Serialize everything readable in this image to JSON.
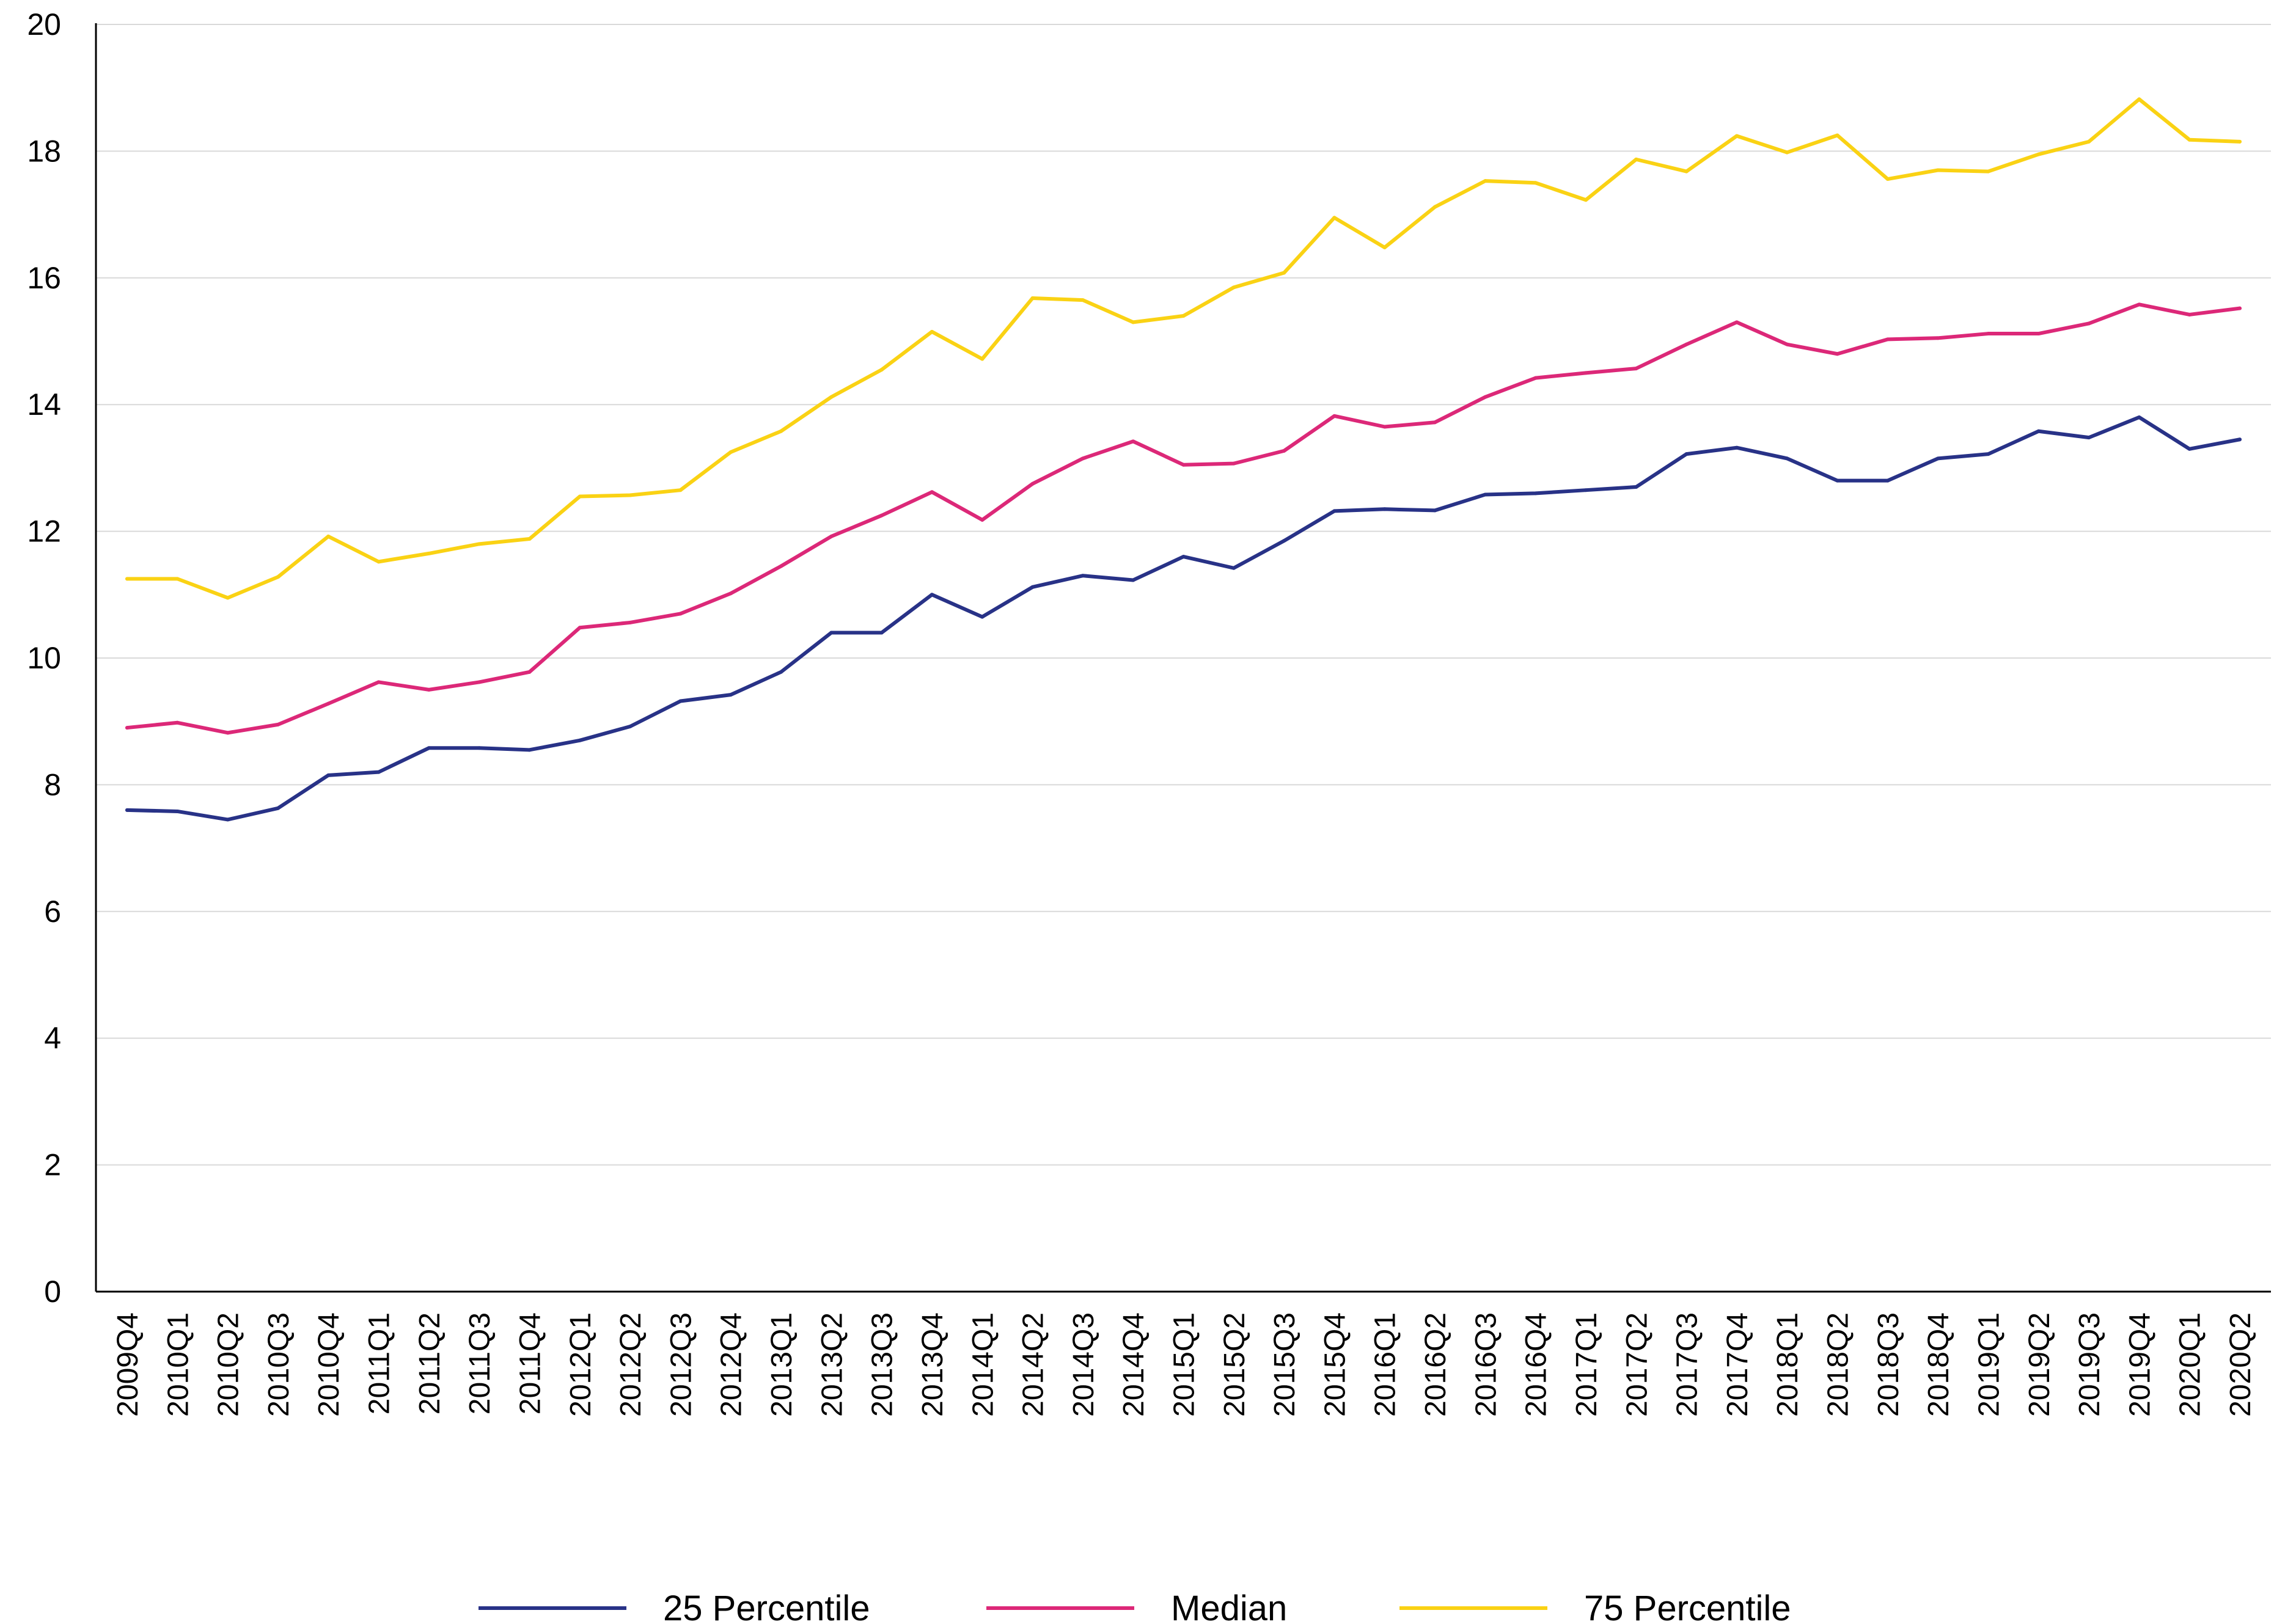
{
  "chart_data": {
    "type": "line",
    "title": "",
    "xlabel": "",
    "ylabel": "",
    "ylim": [
      0,
      20
    ],
    "y_ticks": [
      0,
      2,
      4,
      6,
      8,
      10,
      12,
      14,
      16,
      18,
      20
    ],
    "y_tick_labels": [
      "0",
      "2",
      "4",
      "6",
      "8",
      "10",
      "12",
      "14",
      "16",
      "18",
      "20"
    ],
    "grid": "horizontal",
    "legend_position": "bottom",
    "categories": [
      "2009Q4",
      "2010Q1",
      "2010Q2",
      "2010Q3",
      "2010Q4",
      "2011Q1",
      "2011Q2",
      "2011Q3",
      "2011Q4",
      "2012Q1",
      "2012Q2",
      "2012Q3",
      "2012Q4",
      "2013Q1",
      "2013Q2",
      "2013Q3",
      "2013Q4",
      "2014Q1",
      "2014Q2",
      "2014Q3",
      "2014Q4",
      "2015Q1",
      "2015Q2",
      "2015Q3",
      "2015Q4",
      "2016Q1",
      "2016Q2",
      "2016Q3",
      "2016Q4",
      "2017Q1",
      "2017Q2",
      "2017Q3",
      "2017Q4",
      "2018Q1",
      "2018Q2",
      "2018Q3",
      "2018Q4",
      "2019Q1",
      "2019Q2",
      "2019Q3",
      "2019Q4",
      "2020Q1",
      "2020Q2"
    ],
    "series": [
      {
        "name": "25 Percentile",
        "color": "#283287",
        "values": [
          7.6,
          7.58,
          7.45,
          7.63,
          8.15,
          8.2,
          8.58,
          8.58,
          8.55,
          8.7,
          8.92,
          9.32,
          9.42,
          9.78,
          10.4,
          10.4,
          11.0,
          10.65,
          11.12,
          11.3,
          11.23,
          11.6,
          11.42,
          11.85,
          12.32,
          12.35,
          12.33,
          12.58,
          12.6,
          12.65,
          12.7,
          13.22,
          13.32,
          13.15,
          12.8,
          12.8,
          13.15,
          13.22,
          13.58,
          13.48,
          13.8,
          13.3,
          13.45
        ]
      },
      {
        "name": "Median",
        "color": "#dc2878",
        "values": [
          8.9,
          8.98,
          8.82,
          8.95,
          9.28,
          9.62,
          9.5,
          9.62,
          9.78,
          10.48,
          10.56,
          10.7,
          11.02,
          11.45,
          11.92,
          12.25,
          12.62,
          12.18,
          12.75,
          13.15,
          13.42,
          13.05,
          13.07,
          13.27,
          13.82,
          13.65,
          13.72,
          14.12,
          14.42,
          14.5,
          14.57,
          14.95,
          15.3,
          14.95,
          14.8,
          15.03,
          15.05,
          15.12,
          15.12,
          15.28,
          15.58,
          15.42,
          15.52
        ]
      },
      {
        "name": "75 Percentile",
        "color": "#fad214",
        "values": [
          11.25,
          11.25,
          10.95,
          11.28,
          11.92,
          11.52,
          11.65,
          11.8,
          11.88,
          12.55,
          12.57,
          12.65,
          13.25,
          13.58,
          14.12,
          14.55,
          15.15,
          14.72,
          15.68,
          15.65,
          15.3,
          15.4,
          15.85,
          16.08,
          16.95,
          16.48,
          17.12,
          17.53,
          17.5,
          17.23,
          17.87,
          17.68,
          18.24,
          17.98,
          18.25,
          17.56,
          17.7,
          17.68,
          17.95,
          18.15,
          18.82,
          18.18,
          18.15
        ]
      }
    ]
  }
}
